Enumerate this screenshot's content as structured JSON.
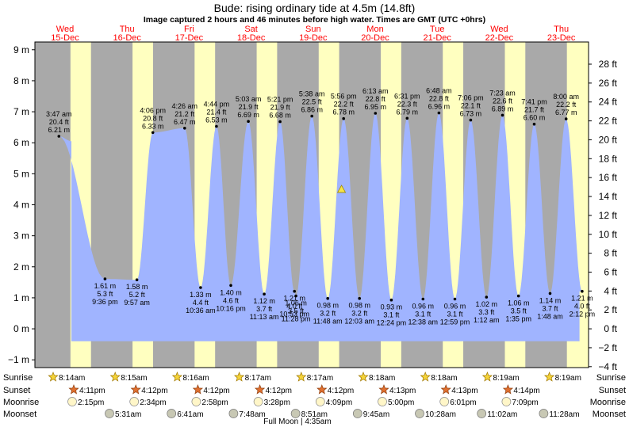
{
  "title": "Bude: rising  ordinary tide at 4.5m (14.8ft)",
  "subtitle": "Image captured 2 hours and 46 minutes before high water. Times are GMT (UTC +0hrs)",
  "colors": {
    "day": "#ffffc0",
    "night": "#a9a9a9",
    "tide": "#a0b4ff",
    "dayname": "#ff0000",
    "marker": "#f5e44a"
  },
  "chart_data": {
    "type": "area",
    "title": "Bude: rising  ordinary tide at 4.5m (14.8ft)",
    "subtitle": "Image captured 2 hours and 46 minutes before high water. Times are GMT (UTC +0hrs)",
    "ylim_m": [
      -1.25,
      9.25
    ],
    "ylim_ft": [
      -4,
      30
    ],
    "y_ticks_m": [
      -1,
      0,
      1,
      2,
      3,
      4,
      5,
      6,
      7,
      8,
      9
    ],
    "y_ticks_m_labels": [
      "−1 m",
      "0 m",
      "1 m",
      "2 m",
      "3 m",
      "4 m",
      "5 m",
      "6 m",
      "7 m",
      "8 m",
      "9 m"
    ],
    "y_ticks_ft": [
      -4,
      -2,
      0,
      2,
      4,
      6,
      8,
      10,
      12,
      14,
      16,
      18,
      20,
      22,
      24,
      26,
      28
    ],
    "y_ticks_ft_labels": [
      "−4 ft",
      "−2 ft",
      "0 ft",
      "2 ft",
      "4 ft",
      "6 ft",
      "8 ft",
      "10 ft",
      "12 ft",
      "14 ft",
      "16 ft",
      "18 ft",
      "20 ft",
      "22 ft",
      "24 ft",
      "26 ft",
      "28 ft"
    ],
    "days": [
      {
        "name": "Wed",
        "date": "15-Dec"
      },
      {
        "name": "Thu",
        "date": "16-Dec"
      },
      {
        "name": "Fri",
        "date": "17-Dec"
      },
      {
        "name": "Sat",
        "date": "18-Dec"
      },
      {
        "name": "Sun",
        "date": "19-Dec"
      },
      {
        "name": "Mon",
        "date": "20-Dec"
      },
      {
        "name": "Tue",
        "date": "21-Dec"
      },
      {
        "name": "Wed",
        "date": "22-Dec"
      },
      {
        "name": "Thu",
        "date": "23-Dec"
      }
    ],
    "start_height_m": 6.05,
    "end_height_m": 1.21,
    "extremes": [
      {
        "day": 0,
        "time": "3:47 am",
        "m": 6.21,
        "ft": "20.4 ft",
        "ml": "6.21 m",
        "type": "high"
      },
      {
        "day": 0,
        "time": "9:36 pm",
        "m": 1.61,
        "ft": "5.3 ft",
        "ml": "1.61 m",
        "type": "low"
      },
      {
        "day": 1,
        "time": "4:06 pm",
        "m": 6.33,
        "ft": "20.8 ft",
        "ml": "6.33 m",
        "type": "high"
      },
      {
        "day": 1,
        "time": "9:57 am",
        "m": 1.58,
        "ft": "5.2 ft",
        "ml": "1.58 m",
        "type": "low"
      },
      {
        "day": 2,
        "time": "4:26 am",
        "m": 6.47,
        "ft": "21.2 ft",
        "ml": "6.47 m",
        "type": "high"
      },
      {
        "day": 2,
        "time": "10:16 pm",
        "m": 1.4,
        "ft": "4.6 ft",
        "ml": "1.40 m",
        "type": "low"
      },
      {
        "day": 2,
        "time": "4:44 pm",
        "m": 6.53,
        "ft": "21.4 ft",
        "ml": "6.53 m",
        "type": "high"
      },
      {
        "day": 2,
        "time": "10:36 am",
        "m": 1.33,
        "ft": "4.4 ft",
        "ml": "1.33 m",
        "type": "low"
      },
      {
        "day": 3,
        "time": "5:03 am",
        "m": 6.69,
        "ft": "21.9 ft",
        "ml": "6.69 m",
        "type": "high"
      },
      {
        "day": 3,
        "time": "10:53 pm",
        "m": 1.21,
        "ft": "4.0 ft",
        "ml": "1.21 m",
        "type": "low"
      },
      {
        "day": 3,
        "time": "5:21 pm",
        "m": 6.68,
        "ft": "21.9 ft",
        "ml": "6.68 m",
        "type": "high"
      },
      {
        "day": 3,
        "time": "11:13 am",
        "m": 1.12,
        "ft": "3.7 ft",
        "ml": "1.12 m",
        "type": "low"
      },
      {
        "day": 4,
        "time": "5:38 am",
        "m": 6.86,
        "ft": "22.5 ft",
        "ml": "6.86 m",
        "type": "high"
      },
      {
        "day": 3,
        "time": "11:28 pm",
        "m": 1.06,
        "ft": "3.5 ft",
        "ml": "1.06 m",
        "type": "low"
      },
      {
        "day": 4,
        "time": "5:56 pm",
        "m": 6.78,
        "ft": "22.2 ft",
        "ml": "6.78 m",
        "type": "high"
      },
      {
        "day": 4,
        "time": "11:48 am",
        "m": 0.98,
        "ft": "3.2 ft",
        "ml": "0.98 m",
        "type": "low"
      },
      {
        "day": 5,
        "time": "6:13 am",
        "m": 6.95,
        "ft": "22.8 ft",
        "ml": "6.95 m",
        "type": "high"
      },
      {
        "day": 5,
        "time": "12:03 am",
        "m": 0.98,
        "ft": "3.2 ft",
        "ml": "0.98 m",
        "type": "low"
      },
      {
        "day": 5,
        "time": "6:31 pm",
        "m": 6.79,
        "ft": "22.3 ft",
        "ml": "6.79 m",
        "type": "high"
      },
      {
        "day": 5,
        "time": "12:24 pm",
        "m": 0.93,
        "ft": "3.1 ft",
        "ml": "0.93 m",
        "type": "low"
      },
      {
        "day": 6,
        "time": "6:48 am",
        "m": 6.96,
        "ft": "22.8 ft",
        "ml": "6.96 m",
        "type": "high"
      },
      {
        "day": 6,
        "time": "12:38 am",
        "m": 0.96,
        "ft": "3.1 ft",
        "ml": "0.96 m",
        "type": "low"
      },
      {
        "day": 6,
        "time": "7:06 pm",
        "m": 6.73,
        "ft": "22.1 ft",
        "ml": "6.73 m",
        "type": "high"
      },
      {
        "day": 6,
        "time": "12:59 pm",
        "m": 0.96,
        "ft": "3.1 ft",
        "ml": "0.96 m",
        "type": "low"
      },
      {
        "day": 7,
        "time": "7:23 am",
        "m": 6.89,
        "ft": "22.6 ft",
        "ml": "6.89 m",
        "type": "high"
      },
      {
        "day": 7,
        "time": "1:12 am",
        "m": 1.02,
        "ft": "3.3 ft",
        "ml": "1.02 m",
        "type": "low"
      },
      {
        "day": 7,
        "time": "7:41 pm",
        "m": 6.6,
        "ft": "21.7 ft",
        "ml": "6.60 m",
        "type": "high"
      },
      {
        "day": 7,
        "time": "1:35 pm",
        "m": 1.06,
        "ft": "3.5 ft",
        "ml": "1.06 m",
        "type": "low"
      },
      {
        "day": 8,
        "time": "8:00 am",
        "m": 6.77,
        "ft": "22.2 ft",
        "ml": "6.77 m",
        "type": "high"
      },
      {
        "day": 8,
        "time": "1:48 am",
        "m": 1.14,
        "ft": "3.7 ft",
        "ml": "1.14 m",
        "type": "low"
      },
      {
        "day": 8,
        "time": "2:12 pm",
        "m": 1.21,
        "ft": "4.0 ft",
        "ml": "1.21 m",
        "type": "low"
      }
    ],
    "current": {
      "day": 4,
      "time": "",
      "m": 4.5,
      "label": "4.5m (14.8ft)"
    }
  },
  "astro": {
    "labels": {
      "sunrise": "Sunrise",
      "sunset": "Sunset",
      "moonrise": "Moonrise",
      "moonset": "Moonset"
    },
    "sunrise": [
      "8:14am",
      "8:15am",
      "8:16am",
      "8:17am",
      "8:17am",
      "8:18am",
      "8:18am",
      "8:19am",
      "8:19am"
    ],
    "sunset": [
      "4:11pm",
      "4:12pm",
      "4:12pm",
      "4:12pm",
      "4:12pm",
      "4:13pm",
      "4:13pm",
      "4:14pm"
    ],
    "moonrise": [
      "2:15pm",
      "2:34pm",
      "2:58pm",
      "3:28pm",
      "4:09pm",
      "5:00pm",
      "6:01pm",
      "7:09pm"
    ],
    "moonset": [
      "5:31am",
      "6:41am",
      "7:48am",
      "8:51am",
      "9:45am",
      "10:28am",
      "11:02am",
      "11:28am"
    ],
    "full_moon": "Full Moon | 4:35am"
  }
}
